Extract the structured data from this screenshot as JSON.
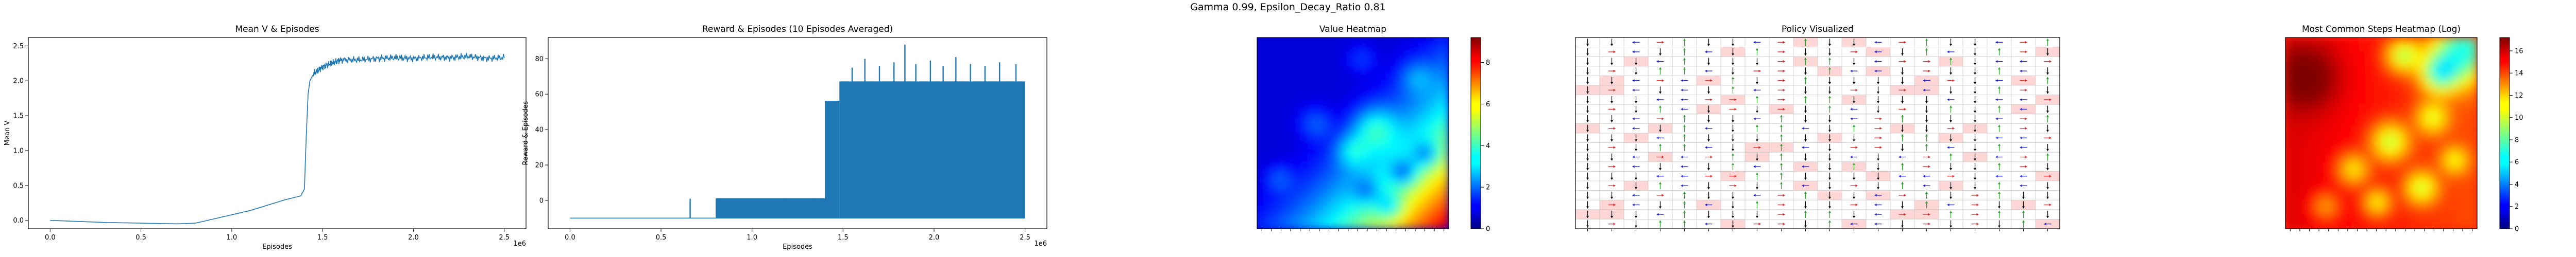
{
  "figure": {
    "suptitle": "Gamma  0.99, Epsilon_Decay_Ratio 0.81"
  },
  "colors": {
    "line": "#1f77b4",
    "bar": "#1f77b4",
    "arrow_up": "#2ca02c",
    "arrow_down": "#000000",
    "arrow_left": "#1f1fd0",
    "arrow_right": "#d62728",
    "highlight": "#ffd6d6",
    "grid_line": "#c8c8c8"
  },
  "chart_data": [
    {
      "type": "line",
      "title": "Mean V & Episodes",
      "xlabel": "Episodes",
      "ylabel": "Mean V",
      "x_multiplier": "1e6",
      "xlim": [
        -0.12,
        2.62
      ],
      "ylim": [
        -0.12,
        2.62
      ],
      "xticks": [
        0.0,
        0.5,
        1.0,
        1.5,
        2.0,
        2.5
      ],
      "xtick_labels": [
        "0.0",
        "0.5",
        "1.0",
        "1.5",
        "2.0",
        "2.5"
      ],
      "yticks": [
        0.0,
        0.5,
        1.0,
        1.5,
        2.0,
        2.5
      ],
      "ytick_labels": [
        "0.0",
        "0.5",
        "1.0",
        "1.5",
        "2.0",
        "2.5"
      ],
      "grid": false,
      "series": [
        {
          "x": [
            0.0,
            0.1,
            0.2,
            0.3,
            0.4,
            0.5,
            0.6,
            0.7,
            0.8,
            0.9,
            1.0,
            1.1,
            1.2,
            1.3,
            1.38,
            1.4,
            1.41,
            1.42,
            1.43,
            1.45,
            1.5,
            1.55,
            1.6,
            1.7,
            1.8,
            1.9,
            2.0,
            2.1,
            2.2,
            2.3,
            2.4,
            2.5
          ],
          "y": [
            0.0,
            -0.01,
            -0.02,
            -0.03,
            -0.035,
            -0.04,
            -0.045,
            -0.05,
            -0.04,
            0.02,
            0.08,
            0.14,
            0.22,
            0.3,
            0.35,
            0.45,
            1.2,
            1.8,
            2.0,
            2.1,
            2.2,
            2.25,
            2.3,
            2.3,
            2.32,
            2.33,
            2.32,
            2.34,
            2.33,
            2.35,
            2.32,
            2.33
          ]
        }
      ]
    },
    {
      "type": "bar",
      "title": "Reward & Episodes (10 Episodes Averaged)",
      "xlabel": "Episodes",
      "ylabel": "Reward & Episodes",
      "x_multiplier": "1e6",
      "xlim": [
        -0.12,
        2.62
      ],
      "ylim": [
        -16,
        92
      ],
      "xticks": [
        0.0,
        0.5,
        1.0,
        1.5,
        2.0,
        2.5
      ],
      "xtick_labels": [
        "0.0",
        "0.5",
        "1.0",
        "1.5",
        "2.0",
        "2.5"
      ],
      "yticks": [
        0,
        20,
        40,
        60,
        80
      ],
      "ytick_labels": [
        "0",
        "20",
        "40",
        "60",
        "80"
      ],
      "grid": false,
      "baseline": -10,
      "regions": [
        {
          "x": [
            0.0,
            0.8
          ],
          "top": -10
        },
        {
          "x": [
            0.8,
            1.4
          ],
          "top": 1
        },
        {
          "x": [
            1.4,
            1.48
          ],
          "top": 56
        },
        {
          "x": [
            1.48,
            2.5
          ],
          "top": 67
        }
      ],
      "spikes": [
        {
          "x": 0.66,
          "y": 1
        },
        {
          "x": 0.82,
          "y": 1
        },
        {
          "x": 0.88,
          "y": 1
        },
        {
          "x": 0.95,
          "y": 1
        },
        {
          "x": 1.02,
          "y": 1
        },
        {
          "x": 1.1,
          "y": 1
        },
        {
          "x": 1.18,
          "y": 1
        },
        {
          "x": 1.26,
          "y": 1
        },
        {
          "x": 1.34,
          "y": 1
        },
        {
          "x": 1.55,
          "y": 75
        },
        {
          "x": 1.62,
          "y": 80
        },
        {
          "x": 1.7,
          "y": 76
        },
        {
          "x": 1.78,
          "y": 78
        },
        {
          "x": 1.84,
          "y": 88
        },
        {
          "x": 1.9,
          "y": 77
        },
        {
          "x": 1.98,
          "y": 79
        },
        {
          "x": 2.05,
          "y": 76
        },
        {
          "x": 2.12,
          "y": 81
        },
        {
          "x": 2.2,
          "y": 77
        },
        {
          "x": 2.28,
          "y": 76
        },
        {
          "x": 2.36,
          "y": 78
        },
        {
          "x": 2.45,
          "y": 77
        }
      ]
    },
    {
      "type": "heatmap",
      "title": "Value Heatmap",
      "colormap": "jet",
      "vmin": 0,
      "vmax": 9.2,
      "colorbar_ticks": [
        0,
        2,
        4,
        6,
        8
      ],
      "colorbar_labels": [
        "0",
        "2",
        "4",
        "6",
        "8"
      ]
    },
    {
      "type": "heatmap",
      "title": "Policy Visualized",
      "arrow_legend": [
        "up",
        "down",
        "left",
        "right"
      ]
    },
    {
      "type": "heatmap",
      "title": "Most Common Steps Heatmap (Log)",
      "colormap": "jet",
      "vmin": 0,
      "vmax": 17.2,
      "colorbar_ticks": [
        0,
        2,
        4,
        6,
        8,
        10,
        12,
        14,
        16
      ],
      "colorbar_labels": [
        "0",
        "2",
        "4",
        "6",
        "8",
        "10",
        "12",
        "14",
        "16"
      ]
    }
  ]
}
